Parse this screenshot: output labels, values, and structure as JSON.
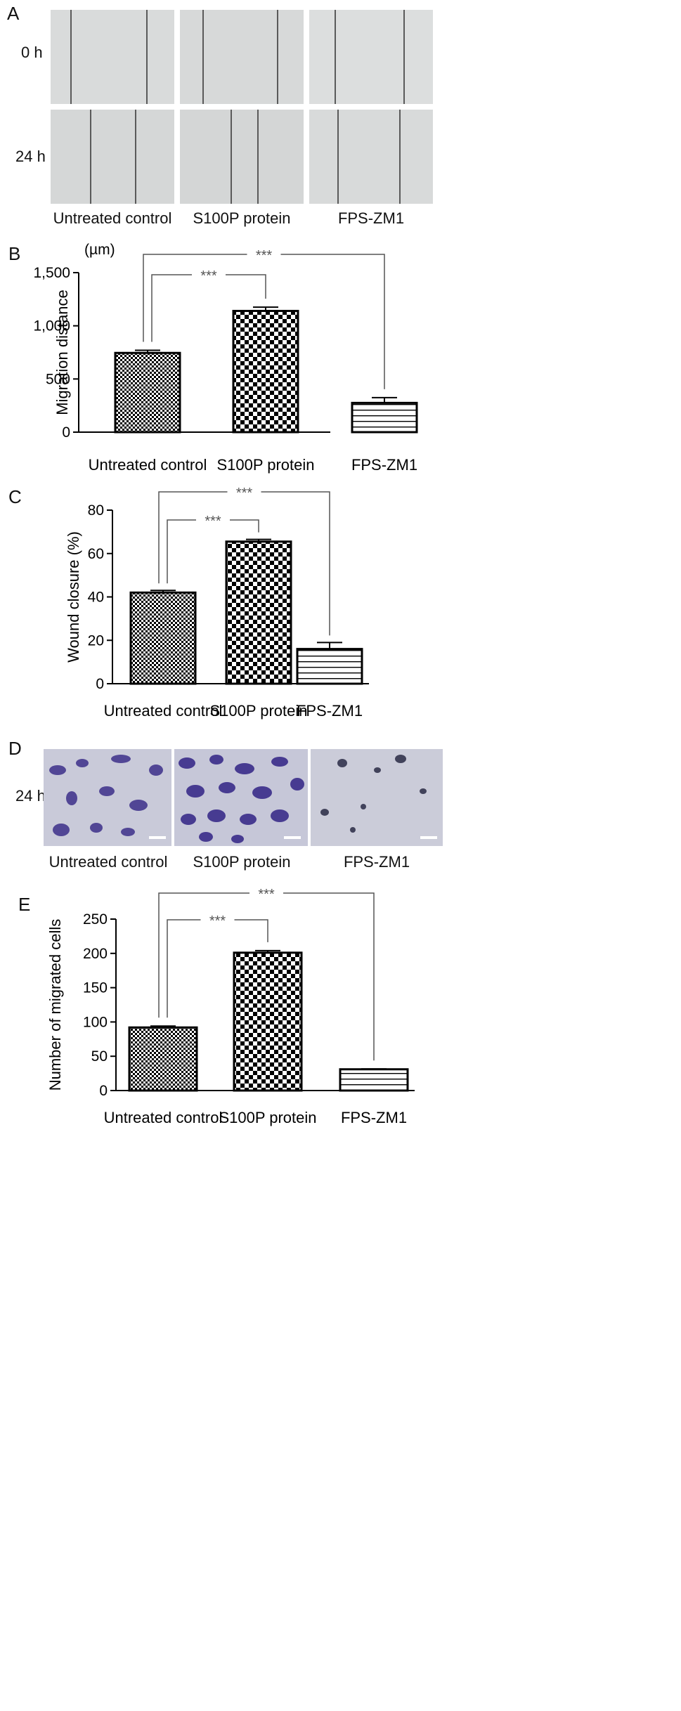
{
  "panel_a": {
    "label": "A",
    "rows": [
      "0 h",
      "24 h"
    ],
    "columns": [
      "Untreated control",
      "S100P protein",
      "FPS-ZM1"
    ]
  },
  "panel_d": {
    "label": "D",
    "rows": [
      "24 h"
    ],
    "columns": [
      "Untreated control",
      "S100P protein",
      "FPS-ZM1"
    ]
  },
  "colors": {
    "bar_stroke": "#000000",
    "bracket": "#555555",
    "stain": "#3d2f8a",
    "brightfield": "#dadcdc"
  },
  "chart_data": [
    {
      "panel": "B",
      "type": "bar",
      "categories": [
        "Untreated control",
        "S100P protein",
        "FPS-ZM1"
      ],
      "values": [
        745,
        1140,
        275
      ],
      "errors": [
        25,
        35,
        50
      ],
      "patterns": [
        "fine-checker",
        "checker",
        "horizontal-lines"
      ],
      "unit": "(µm)",
      "ylabel": "Migration distance",
      "ylim": [
        0,
        1500
      ],
      "yticks": [
        0,
        500,
        1000,
        1500
      ],
      "ytick_labels": [
        "0",
        "500",
        "1,000",
        "1,500"
      ],
      "significance": [
        {
          "from": 0,
          "to": 1,
          "label": "***"
        },
        {
          "from": 0,
          "to": 2,
          "label": "***"
        }
      ]
    },
    {
      "panel": "C",
      "type": "bar",
      "categories": [
        "Untreated control",
        "S100P protein",
        "FPS-ZM1"
      ],
      "values": [
        42,
        65.5,
        16
      ],
      "errors": [
        1,
        1,
        3
      ],
      "patterns": [
        "fine-checker",
        "checker",
        "horizontal-lines"
      ],
      "ylabel": "Wound closure (%)",
      "ylim": [
        0,
        80
      ],
      "yticks": [
        0,
        20,
        40,
        60,
        80
      ],
      "ytick_labels": [
        "0",
        "20",
        "40",
        "60",
        "80"
      ],
      "significance": [
        {
          "from": 0,
          "to": 1,
          "label": "***"
        },
        {
          "from": 0,
          "to": 2,
          "label": "***"
        }
      ]
    },
    {
      "panel": "E",
      "type": "bar",
      "categories": [
        "Untreated control",
        "S100P protein",
        "FPS-ZM1"
      ],
      "values": [
        92,
        201,
        31
      ],
      "errors": [
        2,
        3,
        0.5
      ],
      "patterns": [
        "fine-checker",
        "checker",
        "horizontal-lines"
      ],
      "ylabel": "Number of migrated cells",
      "ylim": [
        0,
        250
      ],
      "yticks": [
        0,
        50,
        100,
        150,
        200,
        250
      ],
      "ytick_labels": [
        "0",
        "50",
        "100",
        "150",
        "200",
        "250"
      ],
      "significance": [
        {
          "from": 0,
          "to": 1,
          "label": "***"
        },
        {
          "from": 0,
          "to": 2,
          "label": "***"
        }
      ]
    }
  ]
}
